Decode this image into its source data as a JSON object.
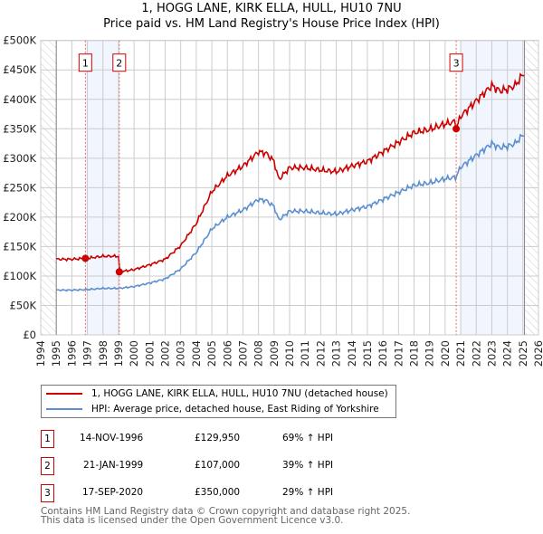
{
  "chart_data": {
    "type": "line",
    "title": "1, HOGG LANE, KIRK ELLA, HULL, HU10 7NU",
    "subtitle": "Price paid vs. HM Land Registry's House Price Index (HPI)",
    "xlim": [
      1994,
      2026
    ],
    "ylim": [
      0,
      500000
    ],
    "x_ticks": [
      "1994",
      "1995",
      "1996",
      "1997",
      "1998",
      "1999",
      "2000",
      "2001",
      "2002",
      "2003",
      "2004",
      "2005",
      "2006",
      "2007",
      "2008",
      "2009",
      "2010",
      "2011",
      "2012",
      "2013",
      "2014",
      "2015",
      "2016",
      "2017",
      "2018",
      "2019",
      "2020",
      "2021",
      "2022",
      "2023",
      "2024",
      "2025",
      "2026"
    ],
    "y_ticks": [
      "£0",
      "£50K",
      "£100K",
      "£150K",
      "£200K",
      "£250K",
      "£300K",
      "£350K",
      "£400K",
      "£450K",
      "£500K"
    ],
    "grid": true,
    "series": [
      {
        "name": "1, HOGG LANE, KIRK ELLA, HULL, HU10 7NU (detached house)",
        "color": "#cc0000"
      },
      {
        "name": "HPI: Average price, detached house, East Riding of Yorkshire",
        "color": "#5b8fd0",
        "x": [
          1995,
          1996,
          1997,
          1998,
          1999,
          2000,
          2001,
          2002,
          2003,
          2004,
          2005,
          2006,
          2007,
          2008,
          2008.5,
          2009,
          2009.3,
          2010,
          2011,
          2012,
          2013,
          2014,
          2015,
          2016,
          2017,
          2018,
          2019,
          2020,
          2020.7,
          2021,
          2022,
          2023,
          2023.5,
          2024,
          2024.5,
          2025.1
        ],
        "y": [
          76000,
          76000,
          77000,
          79000,
          79000,
          82000,
          88000,
          95000,
          112000,
          140000,
          180000,
          200000,
          212000,
          230000,
          228000,
          218000,
          195000,
          210000,
          210000,
          207000,
          205000,
          212000,
          218000,
          230000,
          242000,
          254000,
          258000,
          265000,
          268000,
          285000,
          305000,
          325000,
          318000,
          320000,
          325000,
          342000
        ]
      }
    ],
    "sales": [
      {
        "id": "1",
        "x": 1996.87,
        "date": "14-NOV-1996",
        "price": 129950,
        "price_label": "£129,950",
        "hpi_label": "69% ↑ HPI"
      },
      {
        "id": "2",
        "x": 1999.05,
        "date": "21-JAN-1999",
        "price": 107000,
        "price_label": "£107,000",
        "hpi_label": "39% ↑ HPI"
      },
      {
        "id": "3",
        "x": 2020.71,
        "date": "17-SEP-2020",
        "price": 350000,
        "price_label": "£350,000",
        "hpi_label": "29% ↑ HPI"
      }
    ],
    "legend_placement": "below"
  },
  "footer": {
    "line1": "Contains HM Land Registry data © Crown copyright and database right 2025.",
    "line2": "This data is licensed under the Open Government Licence v3.0."
  }
}
